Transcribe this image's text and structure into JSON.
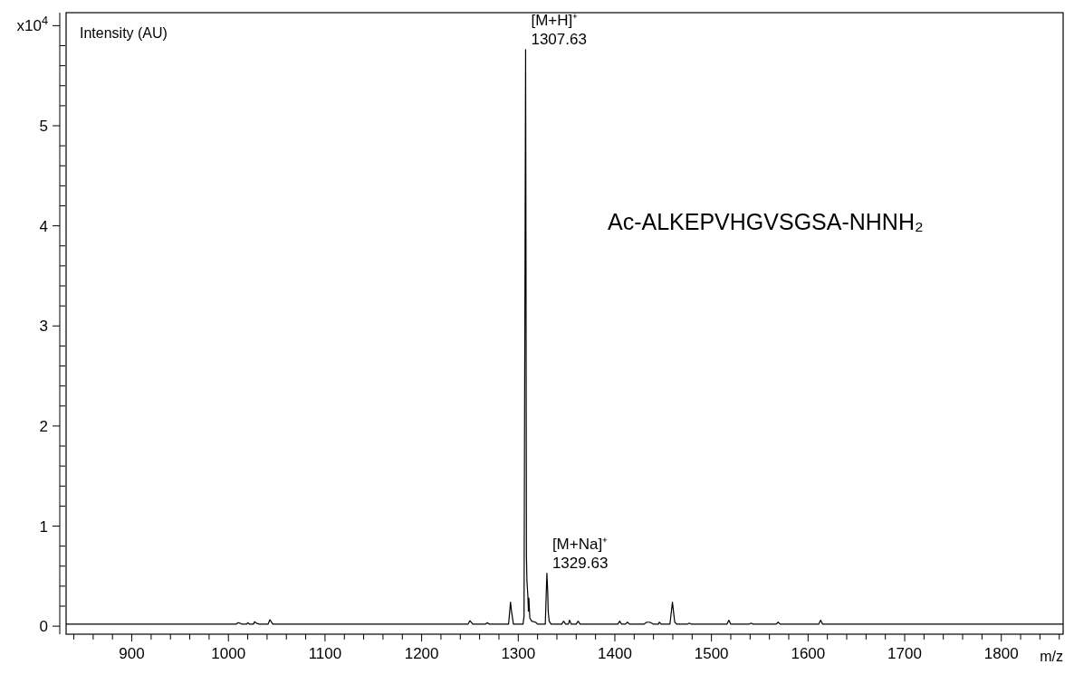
{
  "chart_data": {
    "type": "line",
    "ylabel": "Intensity (AU)",
    "xlabel": "m/z",
    "xlim": [
      832,
      1864
    ],
    "xticks": [
      {
        "value": 840,
        "label": null
      },
      {
        "value": 860,
        "label": null
      },
      {
        "value": 880,
        "label": null
      },
      900,
      {
        "value": 920,
        "label": null
      },
      {
        "value": 940,
        "label": null
      },
      {
        "value": 960,
        "label": null
      },
      {
        "value": 980,
        "label": null
      },
      1000,
      {
        "value": 1020,
        "label": null
      },
      {
        "value": 1040,
        "label": null
      },
      {
        "value": 1060,
        "label": null
      },
      {
        "value": 1080,
        "label": null
      },
      1100,
      {
        "value": 1120,
        "label": null
      },
      {
        "value": 1140,
        "label": null
      },
      {
        "value": 1160,
        "label": null
      },
      {
        "value": 1180,
        "label": null
      },
      1200,
      {
        "value": 1220,
        "label": null
      },
      {
        "value": 1240,
        "label": null
      },
      {
        "value": 1260,
        "label": null
      },
      {
        "value": 1280,
        "label": null
      },
      1300,
      {
        "value": 1320,
        "label": null
      },
      {
        "value": 1340,
        "label": null
      },
      {
        "value": 1360,
        "label": null
      },
      {
        "value": 1380,
        "label": null
      },
      1400,
      {
        "value": 1420,
        "label": null
      },
      {
        "value": 1440,
        "label": null
      },
      {
        "value": 1460,
        "label": null
      },
      {
        "value": 1480,
        "label": null
      },
      1500,
      {
        "value": 1520,
        "label": null
      },
      {
        "value": 1540,
        "label": null
      },
      {
        "value": 1560,
        "label": null
      },
      {
        "value": 1580,
        "label": null
      },
      1600,
      {
        "value": 1620,
        "label": null
      },
      {
        "value": 1640,
        "label": null
      },
      {
        "value": 1660,
        "label": null
      },
      {
        "value": 1680,
        "label": null
      },
      1700,
      {
        "value": 1720,
        "label": null
      },
      {
        "value": 1740,
        "label": null
      },
      {
        "value": 1760,
        "label": null
      },
      {
        "value": 1780,
        "label": null
      },
      1800,
      {
        "value": 1820,
        "label": null
      },
      {
        "value": 1840,
        "label": null
      },
      {
        "value": 1860,
        "label": null
      }
    ],
    "ylim": [
      -0.08,
      6.13
    ],
    "yticks": [
      0,
      {
        "value": 0.2,
        "label": null
      },
      {
        "value": 0.4,
        "label": null
      },
      {
        "value": 0.6,
        "label": null
      },
      {
        "value": 0.8,
        "label": null
      },
      1,
      {
        "value": 1.2,
        "label": null
      },
      {
        "value": 1.4,
        "label": null
      },
      {
        "value": 1.6,
        "label": null
      },
      {
        "value": 1.8,
        "label": null
      },
      2,
      {
        "value": 2.2,
        "label": null
      },
      {
        "value": 2.4,
        "label": null
      },
      {
        "value": 2.6,
        "label": null
      },
      {
        "value": 2.8,
        "label": null
      },
      3,
      {
        "value": 3.2,
        "label": null
      },
      {
        "value": 3.4,
        "label": null
      },
      {
        "value": 3.6,
        "label": null
      },
      {
        "value": 3.8,
        "label": null
      },
      4,
      {
        "value": 4.2,
        "label": null
      },
      {
        "value": 4.4,
        "label": null
      },
      {
        "value": 4.6,
        "label": null
      },
      {
        "value": 4.8,
        "label": null
      },
      5,
      {
        "value": 5.2,
        "label": null
      },
      {
        "value": 5.4,
        "label": null
      },
      {
        "value": 5.6,
        "label": null
      },
      {
        "value": 5.8,
        "label": null
      },
      {
        "value": 6,
        "label": "x10$^{4}$"
      }
    ],
    "grid": false,
    "marker": "none",
    "line_style": "solid",
    "series": [
      {
        "color": "#000000",
        "x": [
          832,
          1008,
          1010,
          1012,
          1014,
          1019,
          1020,
          1022,
          1026,
          1027,
          1029,
          1032,
          1041,
          1043,
          1046,
          1248,
          1250,
          1253,
          1266,
          1268,
          1270,
          1290,
          1292,
          1293,
          1295,
          1305,
          1306,
          1307.63,
          1308,
          1308.5,
          1309,
          1310,
          1310.5,
          1311,
          1312,
          1314,
          1318,
          1320,
          1328,
          1329.63,
          1330.5,
          1331,
          1332,
          1334,
          1345,
          1347,
          1349,
          1352,
          1353,
          1355,
          1360,
          1362,
          1364,
          1380,
          1403,
          1405,
          1407,
          1411,
          1413,
          1415,
          1430,
          1433,
          1436,
          1438,
          1440,
          1445,
          1446,
          1448,
          1457,
          1459.6,
          1461,
          1462,
          1464,
          1475,
          1477,
          1479,
          1516,
          1518,
          1520,
          1539,
          1541,
          1543,
          1567,
          1569,
          1571,
          1611,
          1613,
          1615,
          1864
        ],
        "values": [
          0.02,
          0.02,
          0.035,
          0.03,
          0.02,
          0.02,
          0.035,
          0.02,
          0.02,
          0.045,
          0.03,
          0.02,
          0.02,
          0.065,
          0.02,
          0.02,
          0.055,
          0.02,
          0.02,
          0.035,
          0.02,
          0.02,
          0.24,
          0.15,
          0.02,
          0.02,
          0.1,
          5.76,
          3.86,
          0.7,
          0.45,
          0.3,
          0.15,
          0.28,
          0.08,
          0.05,
          0.04,
          0.02,
          0.02,
          0.53,
          0.35,
          0.15,
          0.05,
          0.02,
          0.02,
          0.05,
          0.02,
          0.02,
          0.06,
          0.02,
          0.02,
          0.05,
          0.02,
          0.02,
          0.02,
          0.05,
          0.02,
          0.02,
          0.04,
          0.02,
          0.02,
          0.04,
          0.04,
          0.03,
          0.02,
          0.02,
          0.04,
          0.02,
          0.02,
          0.24,
          0.12,
          0.04,
          0.02,
          0.02,
          0.03,
          0.02,
          0.02,
          0.06,
          0.02,
          0.02,
          0.03,
          0.02,
          0.02,
          0.04,
          0.02,
          0.02,
          0.06,
          0.02,
          0.02
        ]
      }
    ],
    "annotations": [
      {
        "text": "[M+H]⁺\n1307.63",
        "x": 1307.63,
        "y": 5.76
      },
      {
        "text": "[M+Na]⁺\n1329.63",
        "x": 1329.63,
        "y": 0.53
      },
      "Ac-ALKEPVHGVSGSA-NHNH₂"
    ]
  }
}
